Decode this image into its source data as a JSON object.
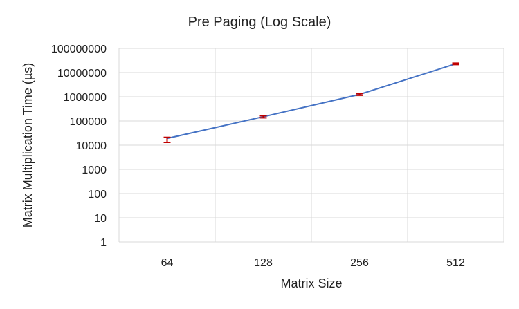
{
  "chart_data": {
    "type": "line",
    "title": "Pre Paging (Log Scale)",
    "xlabel": "Matrix Size",
    "ylabel": "Matrix Multiplication Time (µs)",
    "y_scale": "log",
    "ylim": [
      1,
      100000000
    ],
    "yticks": [
      "1",
      "10",
      "100",
      "1000",
      "10000",
      "100000",
      "1000000",
      "10000000",
      "100000000"
    ],
    "categories": [
      "64",
      "128",
      "256",
      "512"
    ],
    "grid": true,
    "legend": "none",
    "series": [
      {
        "values": [
          19000,
          150000,
          1250000,
          23000000
        ],
        "error_low": [
          13000,
          135000,
          1150000,
          21500000
        ],
        "error_high": [
          21000,
          165000,
          1350000,
          24500000
        ],
        "color": "#4472C4",
        "error_color": "#C00000"
      }
    ]
  }
}
